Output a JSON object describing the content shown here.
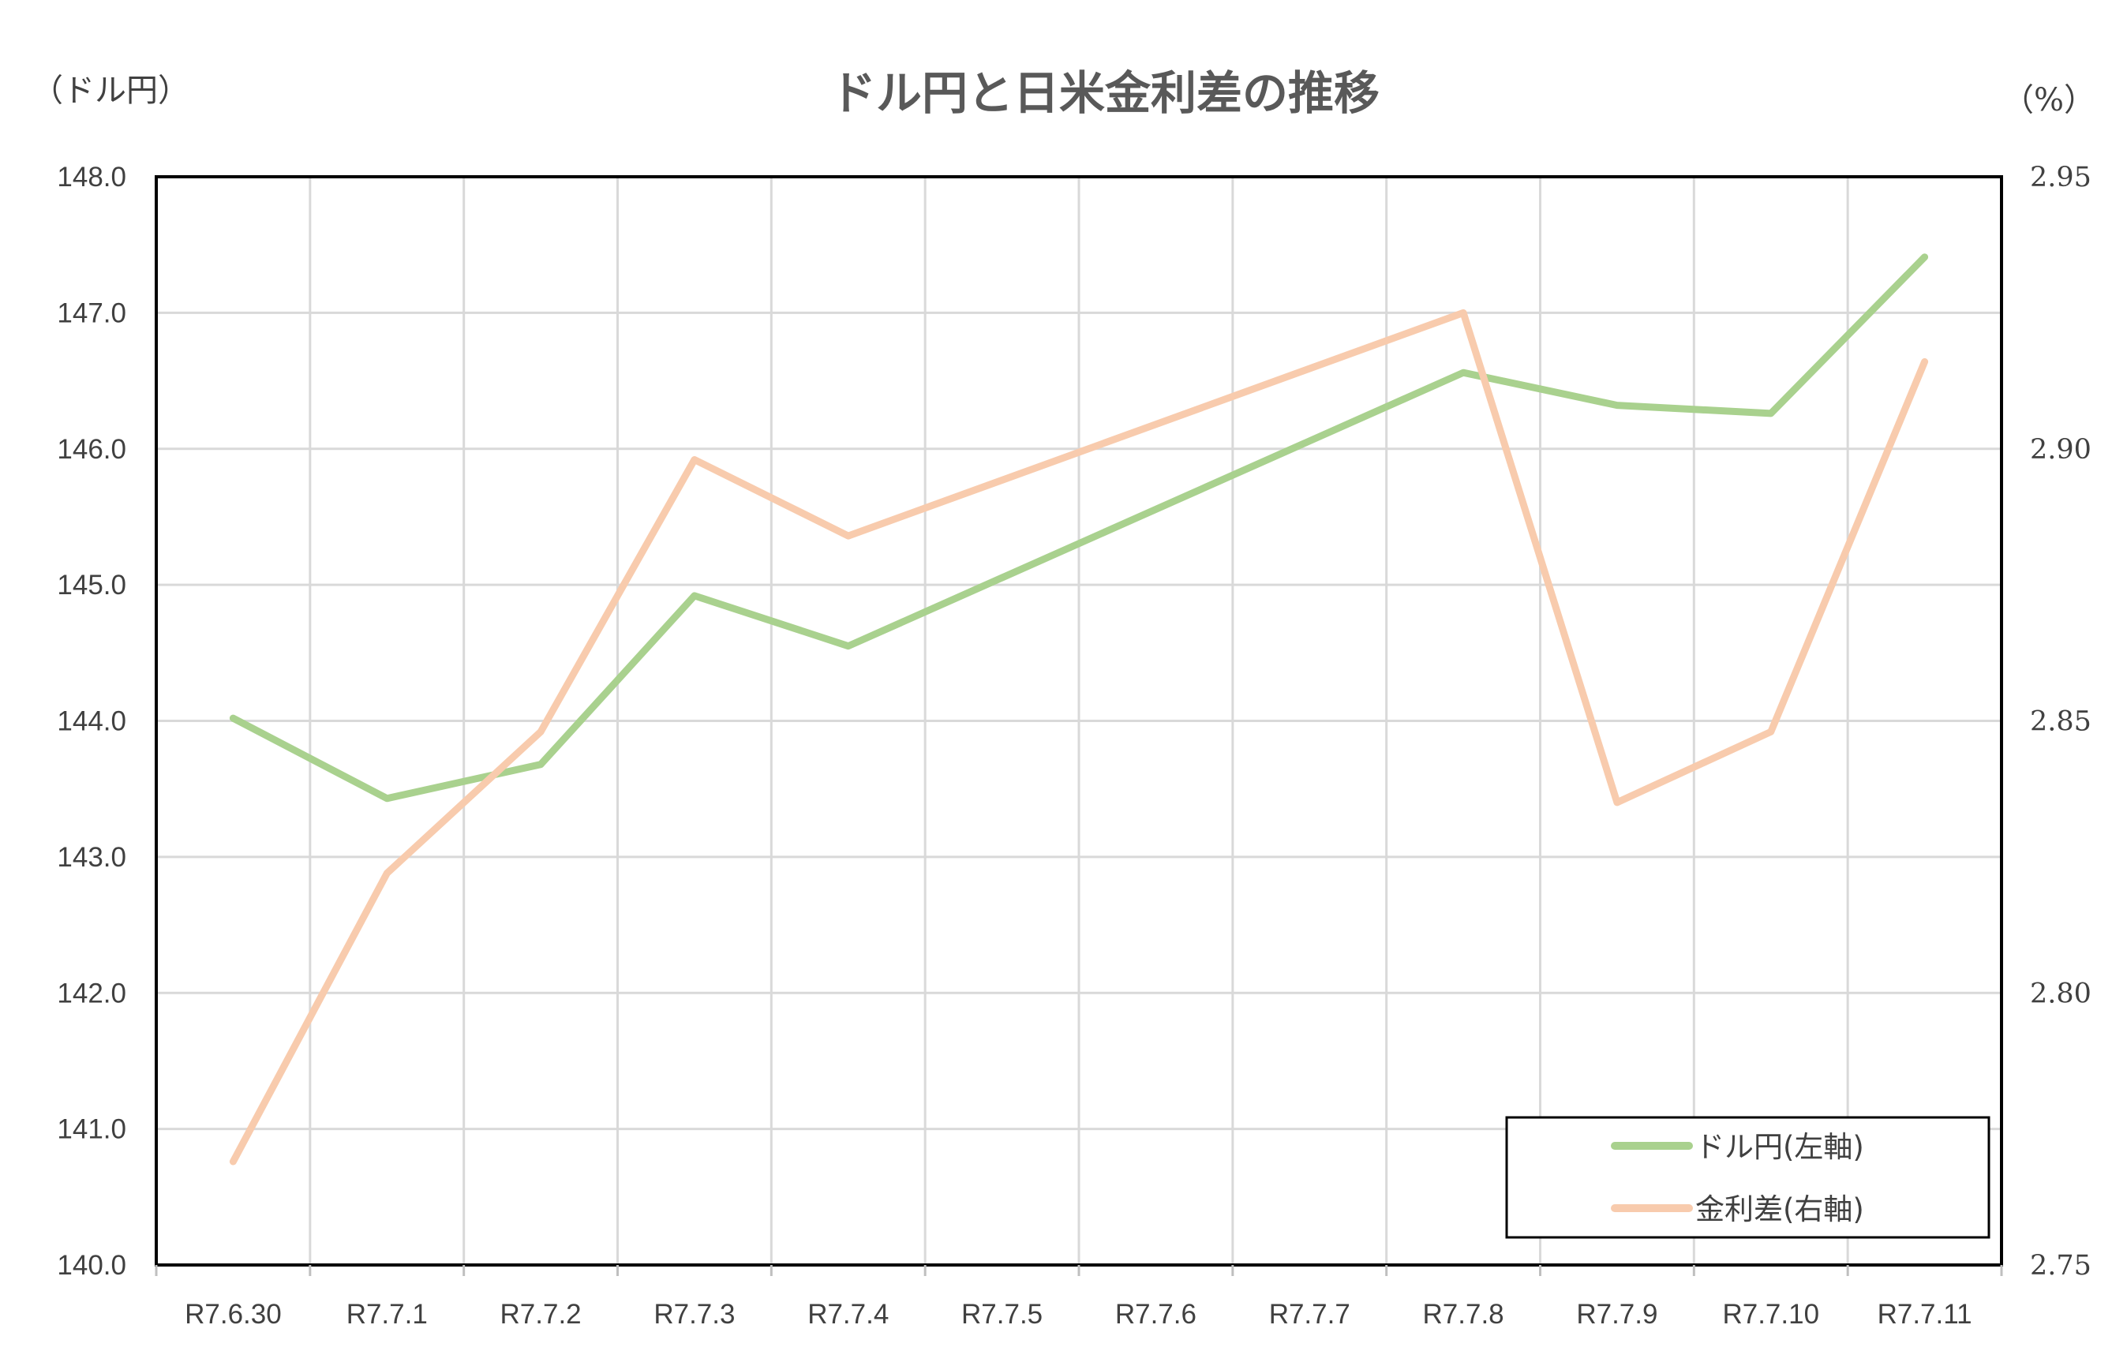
{
  "chart_data": {
    "type": "line",
    "title": "ドル円と日米金利差の推移",
    "left_axis_unit": "（ドル円）",
    "right_axis_unit": "（%）",
    "categories": [
      "R7.6.30",
      "R7.7.1",
      "R7.7.2",
      "R7.7.3",
      "R7.7.4",
      "R7.7.5",
      "R7.7.6",
      "R7.7.7",
      "R7.7.8",
      "R7.7.9",
      "R7.7.10",
      "R7.7.11"
    ],
    "ylim_left": [
      140,
      148
    ],
    "yticks_left": [
      "140.0",
      "141.0",
      "142.0",
      "143.0",
      "144.0",
      "145.0",
      "146.0",
      "147.0",
      "148.0"
    ],
    "ylim_right": [
      2.75,
      2.95
    ],
    "yticks_right": [
      "2.75",
      "2.80",
      "2.85",
      "2.90",
      "2.95"
    ],
    "grid": true,
    "legend_position": "bottom-right",
    "series": [
      {
        "name": "ドル円(左軸)",
        "axis": "left",
        "color": "#a9d18e",
        "values": [
          144.02,
          143.43,
          143.68,
          144.92,
          144.55,
          null,
          null,
          null,
          146.56,
          146.32,
          146.26,
          147.41
        ]
      },
      {
        "name": "金利差(右軸)",
        "axis": "right",
        "color": "#f8cbad",
        "values": [
          2.769,
          2.822,
          2.848,
          2.898,
          2.884,
          null,
          null,
          null,
          2.925,
          2.835,
          2.848,
          2.916
        ]
      }
    ]
  }
}
